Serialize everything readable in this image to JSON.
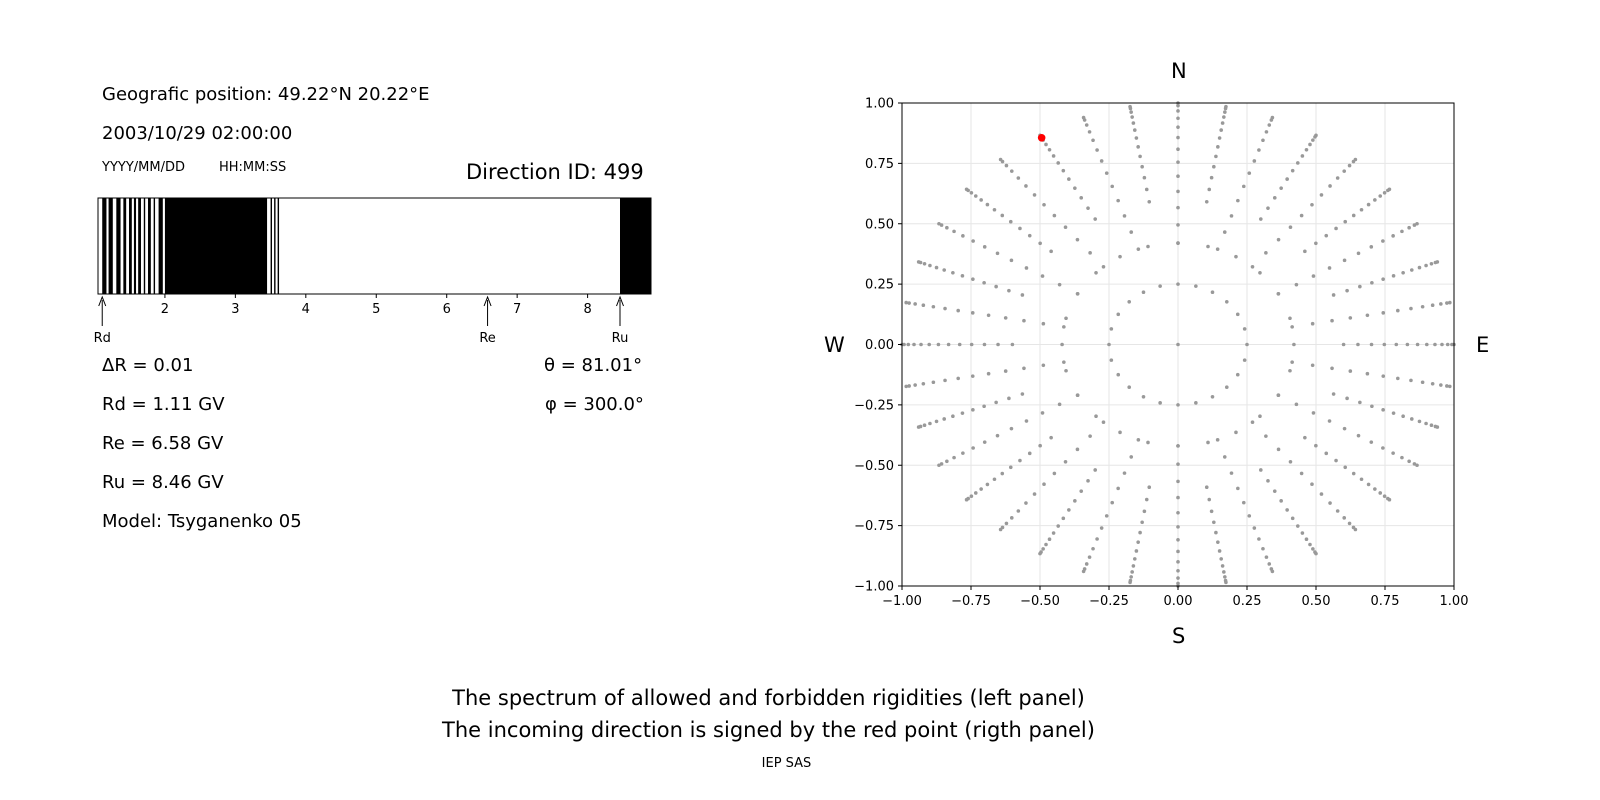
{
  "left_panel": {
    "position_line": "Geografic position: 49.22°N 20.22°E",
    "datetime": "2003/10/29 02:00:00",
    "date_format_label": "YYYY/MM/DD",
    "time_format_label": "HH:MM:SS",
    "direction_id": "Direction ID: 499",
    "delta_r": "ΔR = 0.01",
    "rd_value": "Rd = 1.11 GV",
    "re_value": "Re = 6.58 GV",
    "ru_value": "Ru = 8.46 GV",
    "model": "Model: Tsyganenko 05",
    "theta": "θ = 81.01°",
    "phi": "φ = 300.0°",
    "markers": [
      {
        "label": "Rd",
        "value": 1.11
      },
      {
        "label": "Re",
        "value": 6.58
      },
      {
        "label": "Ru",
        "value": 8.46
      }
    ]
  },
  "right_panel": {
    "north": "N",
    "south": "S",
    "west": "W",
    "east": "E"
  },
  "footer": {
    "caption_line1": "The spectrum of allowed and forbidden rigidities (left panel)",
    "caption_line2": "The incoming direction is signed by the red point (rigth panel)",
    "credit": "IEP SAS"
  },
  "chart_data": [
    {
      "type": "spectrum",
      "xlim": [
        1.05,
        8.9
      ],
      "x_ticks": [
        2,
        3,
        4,
        5,
        6,
        7,
        8
      ],
      "forbidden_intervals": [
        [
          1.11,
          1.17
        ],
        [
          1.2,
          1.26
        ],
        [
          1.31,
          1.37
        ],
        [
          1.41,
          1.45
        ],
        [
          1.49,
          1.53
        ],
        [
          1.56,
          1.59
        ],
        [
          1.62,
          1.66
        ],
        [
          1.7,
          1.72
        ],
        [
          1.76,
          1.8
        ],
        [
          1.84,
          1.86
        ],
        [
          1.91,
          1.97
        ],
        [
          2.0,
          3.45
        ],
        [
          3.5,
          3.52
        ],
        [
          3.55,
          3.57
        ],
        [
          3.6,
          3.62
        ],
        [
          8.46,
          8.9
        ]
      ],
      "colors": {
        "forbidden": "#000000",
        "allowed": "#ffffff"
      }
    },
    {
      "type": "scatter",
      "xlim": [
        -1.0,
        1.0
      ],
      "ylim": [
        -1.0,
        1.0
      ],
      "x_ticks": [
        "-1.00",
        "-0.75",
        "-0.50",
        "-0.25",
        "0.00",
        "0.25",
        "0.50",
        "0.75",
        "1.00"
      ],
      "y_ticks": [
        "1.00",
        "0.75",
        "0.50",
        "0.25",
        "0.00",
        "-0.25",
        "-0.50",
        "-0.75",
        "-1.00"
      ],
      "grid": true,
      "series": [
        {
          "kind": "direction grid",
          "color": "#999999",
          "center": [
            0.0,
            0.0
          ],
          "ring_radii": [
            0.25,
            0.42
          ],
          "ring_point_counts": [
            24,
            24
          ],
          "ray_azimuths_deg": [
            0,
            10,
            20,
            30,
            40,
            50,
            60,
            70,
            80,
            90,
            100,
            110,
            120,
            130,
            140,
            150,
            160,
            170,
            180,
            190,
            200,
            210,
            220,
            230,
            240,
            250,
            260,
            270,
            280,
            290,
            300,
            310,
            320,
            330,
            340,
            350
          ],
          "ray_radius_range_even": [
            0.42,
            1.0
          ],
          "ray_radius_range_odd": [
            0.6,
            1.0
          ]
        },
        {
          "kind": "incoming direction",
          "color": "#ff0000",
          "points": [
            {
              "x": -0.494,
              "y": 0.856
            }
          ]
        }
      ]
    }
  ]
}
